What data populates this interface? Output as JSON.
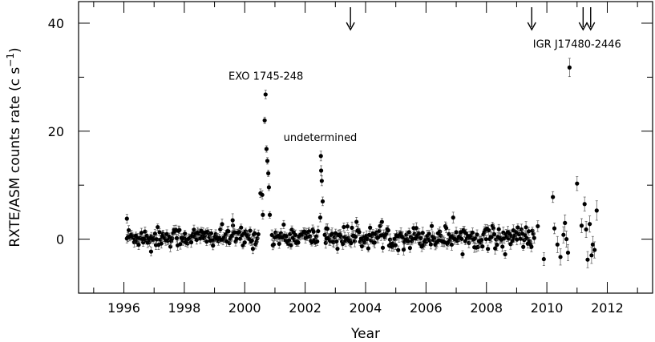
{
  "chart_data": {
    "type": "scatter",
    "xlabel": "Year",
    "ylabel": "RXTE/ASM counts rate (c s",
    "ylabel_superscript": "−1",
    "ylabel_close": ")",
    "xlim": [
      1994.5,
      2013.5
    ],
    "ylim": [
      -10,
      44
    ],
    "x_ticks": [
      1996,
      1998,
      2000,
      2002,
      2004,
      2006,
      2008,
      2010,
      2012
    ],
    "x_tick_labels": [
      "1996",
      "1998",
      "2000",
      "2002",
      "2004",
      "2006",
      "2008",
      "2010",
      "2012"
    ],
    "y_ticks": [
      0,
      20,
      40
    ],
    "y_tick_labels": [
      "0",
      "20",
      "40"
    ],
    "grid": false,
    "annotations": [
      {
        "text": "EXO 1745-248",
        "x": 2000.7,
        "y": 29.5
      },
      {
        "text": "undetermined",
        "x": 2002.5,
        "y": 18.2
      },
      {
        "text": "IGR J17480-2446",
        "x": 2011.0,
        "y": 35.5
      }
    ],
    "arrows": [
      {
        "x": 2003.5
      },
      {
        "x": 2009.5
      },
      {
        "x": 2011.2
      },
      {
        "x": 2011.45
      }
    ],
    "series": [
      {
        "points": [
          {
            "x": 1996.1,
            "y": 3.8,
            "err": 0.8
          },
          {
            "x": 1996.9,
            "y": -2.3,
            "err": 0.8
          },
          {
            "x": 1999.6,
            "y": 3.5,
            "err": 1.2
          },
          {
            "x": 2000.52,
            "y": 8.5,
            "err": 0.8
          },
          {
            "x": 2000.58,
            "y": 8.2,
            "err": 0.8
          },
          {
            "x": 2000.6,
            "y": 4.5,
            "err": 0.8
          },
          {
            "x": 2000.66,
            "y": 22.0,
            "err": 0.6
          },
          {
            "x": 2000.69,
            "y": 26.8,
            "err": 0.8
          },
          {
            "x": 2000.72,
            "y": 16.7,
            "err": 0.6
          },
          {
            "x": 2000.75,
            "y": 14.5,
            "err": 0.6
          },
          {
            "x": 2000.78,
            "y": 12.2,
            "err": 0.6
          },
          {
            "x": 2000.8,
            "y": 9.6,
            "err": 0.6
          },
          {
            "x": 2000.83,
            "y": 4.5,
            "err": 0.6
          },
          {
            "x": 2002.5,
            "y": 4.0,
            "err": 0.8
          },
          {
            "x": 2002.52,
            "y": 15.4,
            "err": 0.9
          },
          {
            "x": 2002.53,
            "y": 12.7,
            "err": 0.9
          },
          {
            "x": 2002.55,
            "y": 10.8,
            "err": 0.9
          },
          {
            "x": 2002.58,
            "y": 7.0,
            "err": 0.8
          },
          {
            "x": 2002.7,
            "y": 2.0,
            "err": 0.8
          },
          {
            "x": 2006.9,
            "y": 4.0,
            "err": 1.0
          },
          {
            "x": 2009.7,
            "y": 2.4,
            "err": 1.0
          },
          {
            "x": 2009.9,
            "y": -3.7,
            "err": 1.2
          },
          {
            "x": 2010.2,
            "y": 7.8,
            "err": 1.0
          },
          {
            "x": 2010.25,
            "y": 2.0,
            "err": 1.0
          },
          {
            "x": 2010.35,
            "y": -1.0,
            "err": 1.5
          },
          {
            "x": 2010.45,
            "y": -3.3,
            "err": 1.5
          },
          {
            "x": 2010.55,
            "y": 0.8,
            "err": 1.5
          },
          {
            "x": 2010.6,
            "y": 3.0,
            "err": 1.5
          },
          {
            "x": 2010.65,
            "y": 0.0,
            "err": 1.5
          },
          {
            "x": 2010.7,
            "y": -2.5,
            "err": 1.5
          },
          {
            "x": 2010.75,
            "y": 31.8,
            "err": 1.7
          },
          {
            "x": 2011.0,
            "y": 10.3,
            "err": 1.3
          },
          {
            "x": 2011.15,
            "y": 2.5,
            "err": 1.3
          },
          {
            "x": 2011.25,
            "y": 6.5,
            "err": 1.3
          },
          {
            "x": 2011.3,
            "y": 1.8,
            "err": 1.5
          },
          {
            "x": 2011.35,
            "y": -3.8,
            "err": 1.5
          },
          {
            "x": 2011.42,
            "y": 2.8,
            "err": 1.5
          },
          {
            "x": 2011.48,
            "y": -3.0,
            "err": 1.5
          },
          {
            "x": 2011.52,
            "y": -1.0,
            "err": 1.5
          },
          {
            "x": 2011.58,
            "y": -2.0,
            "err": 1.5
          },
          {
            "x": 2011.65,
            "y": 5.3,
            "err": 1.8
          }
        ]
      }
    ],
    "quiescent_segments": [
      {
        "x_start": 1996.1,
        "x_end": 2000.45,
        "step": 0.03,
        "mean": 0.4,
        "sd": 0.9,
        "err": 0.8
      },
      {
        "x_start": 2000.9,
        "x_end": 2002.45,
        "step": 0.03,
        "mean": 0.4,
        "sd": 0.9,
        "err": 0.8
      },
      {
        "x_start": 2002.65,
        "x_end": 2009.6,
        "step": 0.03,
        "mean": 0.4,
        "sd": 1.0,
        "err": 0.9
      }
    ]
  }
}
